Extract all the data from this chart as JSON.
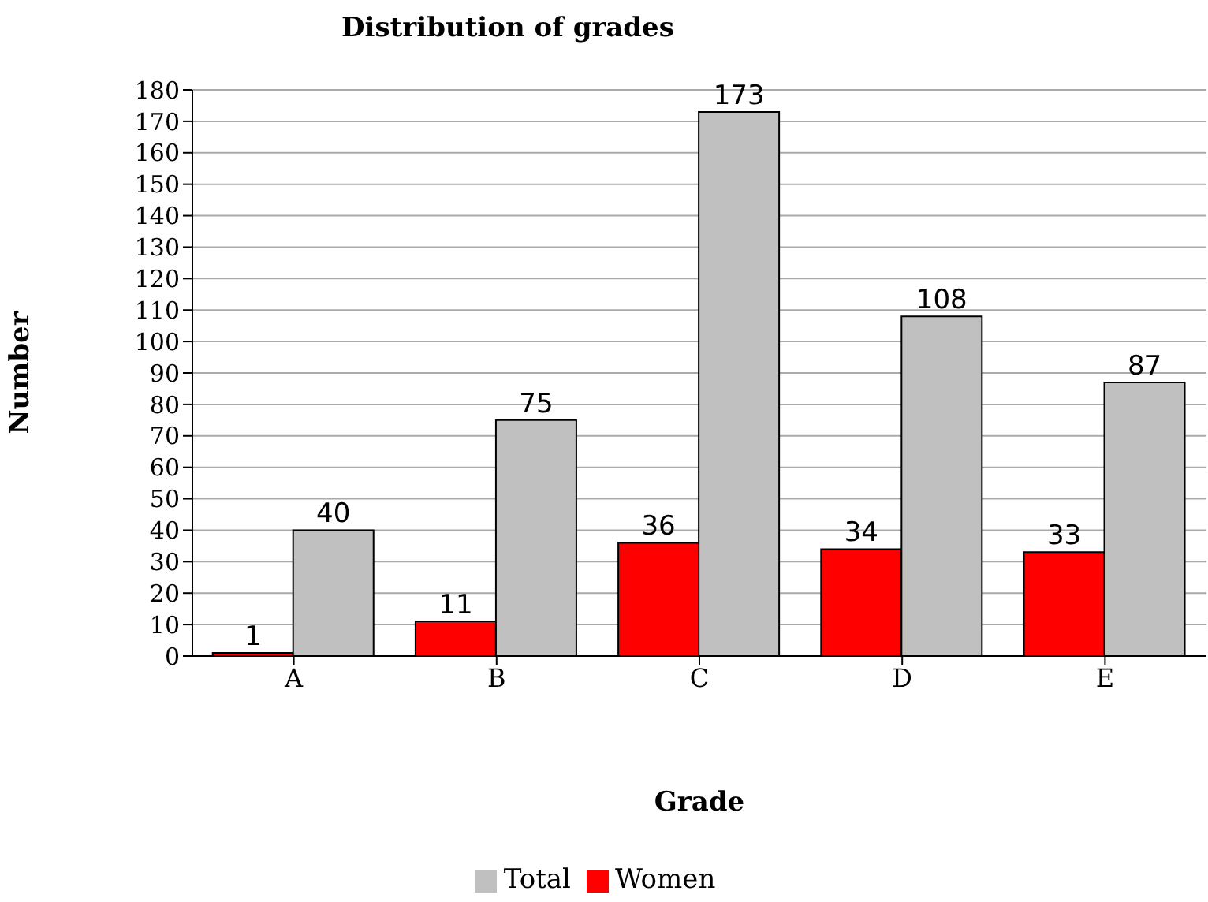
{
  "chart_data": {
    "type": "bar",
    "title": "Distribution of grades",
    "xlabel": "Grade",
    "ylabel": "Number",
    "categories": [
      "A",
      "B",
      "C",
      "D",
      "E"
    ],
    "series": [
      {
        "name": "Women",
        "color": "#ff0000",
        "values": [
          1,
          11,
          36,
          34,
          33
        ]
      },
      {
        "name": "Total",
        "color": "#c0c0c0",
        "values": [
          40,
          75,
          173,
          108,
          87
        ]
      }
    ],
    "ylim": [
      0,
      180
    ],
    "yticks": [
      0,
      10,
      20,
      30,
      40,
      50,
      60,
      70,
      80,
      90,
      100,
      110,
      120,
      130,
      140,
      150,
      160,
      170,
      180
    ],
    "grid": "y",
    "legend": "bottom",
    "data_labels": true
  }
}
